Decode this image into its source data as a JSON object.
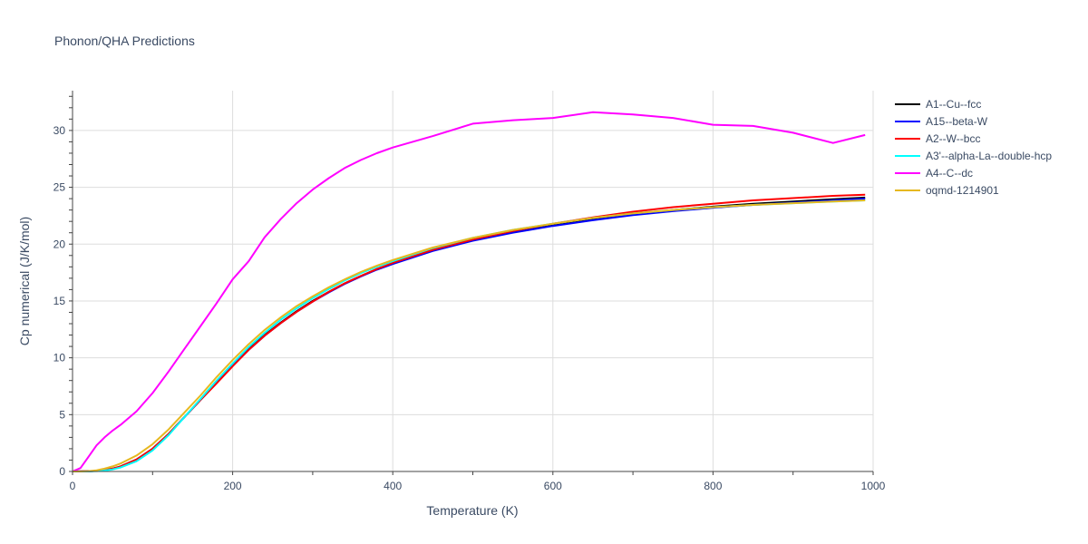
{
  "chart_data": {
    "type": "line",
    "title": "Phonon/QHA Predictions",
    "xlabel": "Temperature (K)",
    "ylabel": "Cp numerical (J/K/mol)",
    "xlim": [
      0,
      1000
    ],
    "ylim": [
      0,
      33.5
    ],
    "xticks": [
      0,
      200,
      400,
      600,
      800,
      1000
    ],
    "yticks": [
      0,
      5,
      10,
      15,
      20,
      25,
      30
    ],
    "grid": true,
    "legend_position": "right",
    "x": [
      0,
      10,
      20,
      30,
      40,
      50,
      60,
      80,
      100,
      120,
      140,
      160,
      180,
      200,
      220,
      240,
      260,
      280,
      300,
      320,
      340,
      360,
      380,
      400,
      450,
      500,
      550,
      600,
      650,
      700,
      750,
      800,
      850,
      900,
      950,
      990
    ],
    "series": [
      {
        "name": "A1--Cu--fcc",
        "color": "#000000",
        "values": [
          0,
          0.01,
          0.02,
          0.05,
          0.12,
          0.25,
          0.45,
          1.05,
          2.0,
          3.3,
          4.8,
          6.3,
          7.8,
          9.3,
          10.75,
          12.0,
          13.1,
          14.1,
          15.0,
          15.8,
          16.55,
          17.2,
          17.8,
          18.3,
          19.45,
          20.35,
          21.05,
          21.65,
          22.15,
          22.6,
          23.0,
          23.3,
          23.55,
          23.75,
          23.95,
          24.1
        ]
      },
      {
        "name": "A15--beta-W",
        "color": "#0000ff",
        "values": [
          0,
          0.01,
          0.02,
          0.05,
          0.12,
          0.25,
          0.45,
          1.05,
          2.0,
          3.3,
          4.8,
          6.3,
          7.8,
          9.3,
          10.7,
          11.95,
          13.05,
          14.05,
          14.95,
          15.75,
          16.5,
          17.15,
          17.75,
          18.25,
          19.4,
          20.3,
          21.0,
          21.6,
          22.1,
          22.55,
          22.9,
          23.2,
          23.45,
          23.65,
          23.85,
          24.0
        ]
      },
      {
        "name": "A2--W--bcc",
        "color": "#ff0000",
        "values": [
          0,
          0.01,
          0.02,
          0.05,
          0.12,
          0.25,
          0.45,
          1.05,
          2.0,
          3.3,
          4.8,
          6.3,
          7.75,
          9.25,
          10.7,
          11.95,
          13.05,
          14.05,
          14.95,
          15.8,
          16.55,
          17.2,
          17.8,
          18.35,
          19.5,
          20.4,
          21.15,
          21.8,
          22.35,
          22.85,
          23.25,
          23.55,
          23.85,
          24.05,
          24.25,
          24.35
        ]
      },
      {
        "name": "A3'--alpha-La--double-hcp",
        "color": "#00ffff",
        "values": [
          0,
          0.0,
          0.01,
          0.03,
          0.08,
          0.18,
          0.35,
          0.9,
          1.85,
          3.2,
          4.8,
          6.4,
          8.0,
          9.5,
          10.95,
          12.2,
          13.35,
          14.35,
          15.25,
          16.05,
          16.8,
          17.45,
          18.0,
          18.5,
          19.65,
          20.55,
          21.25,
          21.8,
          22.3,
          22.7,
          23.0,
          23.25,
          23.45,
          23.6,
          23.75,
          23.85
        ]
      },
      {
        "name": "A4--C--dc",
        "color": "#ff00ff",
        "values": [
          0,
          0.3,
          1.3,
          2.3,
          3.0,
          3.6,
          4.1,
          5.3,
          6.9,
          8.8,
          10.8,
          12.8,
          14.8,
          16.9,
          18.5,
          20.6,
          22.2,
          23.6,
          24.8,
          25.8,
          26.7,
          27.4,
          28.0,
          28.5,
          29.5,
          30.6,
          30.9,
          31.1,
          31.6,
          31.4,
          31.1,
          30.5,
          30.4,
          29.8,
          28.9,
          29.6
        ]
      },
      {
        "name": "oqmd-1214901",
        "color": "#e6b820",
        "values": [
          0,
          0.0,
          0.03,
          0.1,
          0.25,
          0.45,
          0.7,
          1.4,
          2.4,
          3.7,
          5.2,
          6.7,
          8.3,
          9.8,
          11.2,
          12.45,
          13.55,
          14.55,
          15.4,
          16.2,
          16.9,
          17.55,
          18.1,
          18.6,
          19.7,
          20.55,
          21.25,
          21.8,
          22.3,
          22.7,
          23.0,
          23.25,
          23.45,
          23.6,
          23.75,
          23.85
        ]
      }
    ]
  }
}
